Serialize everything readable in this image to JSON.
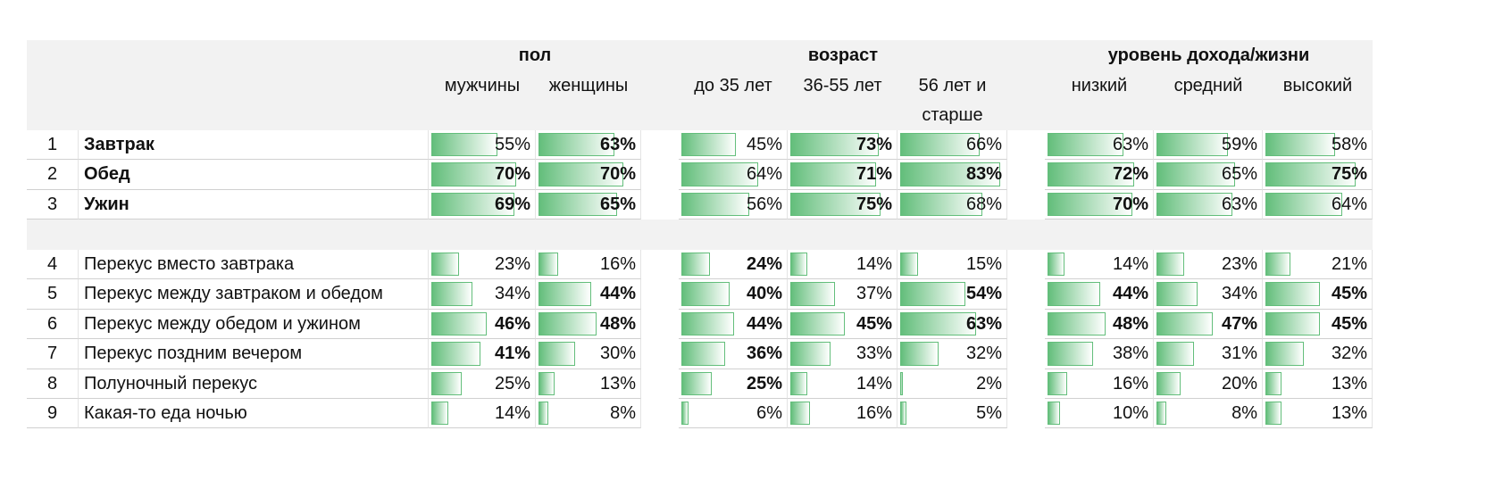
{
  "groups": [
    {
      "label": "пол",
      "span": 2
    },
    {
      "label": "возраст",
      "span": 3
    },
    {
      "label": "уровень дохода/жизни",
      "span": 3
    }
  ],
  "columns": [
    "мужчины",
    "женщины",
    "до 35 лет",
    "36-55 лет",
    "56 лет и старше",
    "низкий",
    "средний",
    "высокий"
  ],
  "bar_color": "#63be7b",
  "rows": [
    {
      "index": "1",
      "label": "Завтрак",
      "label_bold": true,
      "values": [
        55,
        63,
        45,
        73,
        66,
        63,
        59,
        58
      ],
      "value_labels": [
        "55%",
        "63%",
        "45%",
        "73%",
        "66%",
        "63%",
        "59%",
        "58%"
      ],
      "bold": [
        false,
        true,
        false,
        true,
        false,
        false,
        false,
        false
      ]
    },
    {
      "index": "2",
      "label": "Обед",
      "label_bold": true,
      "values": [
        70,
        70,
        64,
        71,
        83,
        72,
        65,
        75
      ],
      "value_labels": [
        "70%",
        "70%",
        "64%",
        "71%",
        "83%",
        "72%",
        "65%",
        "75%"
      ],
      "bold": [
        true,
        true,
        false,
        true,
        true,
        true,
        false,
        true
      ]
    },
    {
      "index": "3",
      "label": "Ужин",
      "label_bold": true,
      "values": [
        69,
        65,
        56,
        75,
        68,
        70,
        63,
        64
      ],
      "value_labels": [
        "69%",
        "65%",
        "56%",
        "75%",
        "68%",
        "70%",
        "63%",
        "64%"
      ],
      "bold": [
        true,
        true,
        false,
        true,
        false,
        true,
        false,
        false
      ]
    },
    {
      "index": "4",
      "label": "Перекус вместо завтрака",
      "label_bold": false,
      "values": [
        23,
        16,
        24,
        14,
        15,
        14,
        23,
        21
      ],
      "value_labels": [
        "23%",
        "16%",
        "24%",
        "14%",
        "15%",
        "14%",
        "23%",
        "21%"
      ],
      "bold": [
        false,
        false,
        true,
        false,
        false,
        false,
        false,
        false
      ]
    },
    {
      "index": "5",
      "label": "Перекус между завтраком и обедом",
      "label_bold": false,
      "values": [
        34,
        44,
        40,
        37,
        54,
        44,
        34,
        45
      ],
      "value_labels": [
        "34%",
        "44%",
        "40%",
        "37%",
        "54%",
        "44%",
        "34%",
        "45%"
      ],
      "bold": [
        false,
        true,
        true,
        false,
        true,
        true,
        false,
        true
      ]
    },
    {
      "index": "6",
      "label": "Перекус между обедом и ужином",
      "label_bold": false,
      "values": [
        46,
        48,
        44,
        45,
        63,
        48,
        47,
        45
      ],
      "value_labels": [
        "46%",
        "48%",
        "44%",
        "45%",
        "63%",
        "48%",
        "47%",
        "45%"
      ],
      "bold": [
        true,
        true,
        true,
        true,
        true,
        true,
        true,
        true
      ]
    },
    {
      "index": "7",
      "label": "Перекус поздним вечером",
      "label_bold": false,
      "values": [
        41,
        30,
        36,
        33,
        32,
        38,
        31,
        32
      ],
      "value_labels": [
        "41%",
        "30%",
        "36%",
        "33%",
        "32%",
        "38%",
        "31%",
        "32%"
      ],
      "bold": [
        true,
        false,
        true,
        false,
        false,
        false,
        false,
        false
      ]
    },
    {
      "index": "8",
      "label": "Полуночный перекус",
      "label_bold": false,
      "values": [
        25,
        13,
        25,
        14,
        2,
        16,
        20,
        13
      ],
      "value_labels": [
        "25%",
        "13%",
        "25%",
        "14%",
        "2%",
        "16%",
        "20%",
        "13%"
      ],
      "bold": [
        false,
        false,
        true,
        false,
        false,
        false,
        false,
        false
      ]
    },
    {
      "index": "9",
      "label": "Какая-то еда ночью",
      "label_bold": false,
      "values": [
        14,
        8,
        6,
        16,
        5,
        10,
        8,
        13
      ],
      "value_labels": [
        "14%",
        "8%",
        "6%",
        "16%",
        "5%",
        "10%",
        "8%",
        "13%"
      ],
      "bold": [
        false,
        false,
        false,
        false,
        false,
        false,
        false,
        false
      ]
    }
  ]
}
